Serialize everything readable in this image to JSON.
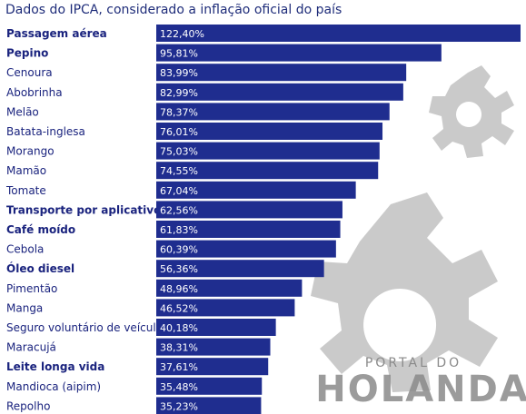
{
  "watermark": {
    "line1": "PORTAL DO",
    "line2": "HOLANDA",
    "color": "#9e9e9e"
  },
  "chart_data": {
    "type": "bar",
    "orientation": "horizontal",
    "title": "Dados do IPCA, considerado a inflação oficial do país",
    "xlabel": "",
    "ylabel": "",
    "xlim": [
      0,
      125
    ],
    "grid": false,
    "bar_color": "#1f2d8f",
    "label_color": "#1a237e",
    "categories": [
      "Passagem aérea",
      "Pepino",
      "Cenoura",
      "Abobrinha",
      "Melão",
      "Batata-inglesa",
      "Morango",
      "Mamão",
      "Tomate",
      "Transporte por aplicativo",
      "Café moído",
      "Cebola",
      "Óleo diesel",
      "Pimentão",
      "Manga",
      "Seguro voluntário de veículo",
      "Maracujá",
      "Leite longa vida",
      "Mandioca (aipim)",
      "Repolho"
    ],
    "values": [
      122.4,
      95.81,
      83.99,
      82.99,
      78.37,
      76.01,
      75.03,
      74.55,
      67.04,
      62.56,
      61.83,
      60.39,
      56.36,
      48.96,
      46.52,
      40.18,
      38.31,
      37.61,
      35.48,
      35.23
    ],
    "value_labels": [
      "122,40%",
      "95,81%",
      "83,99%",
      "82,99%",
      "78,37%",
      "76,01%",
      "75,03%",
      "74,55%",
      "67,04%",
      "62,56%",
      "61,83%",
      "60,39%",
      "56,36%",
      "48,96%",
      "46,52%",
      "40,18%",
      "38,31%",
      "37,61%",
      "35,48%",
      "35,23%"
    ],
    "bold_categories": [
      "Passagem aérea",
      "Pepino",
      "Transporte por aplicativo",
      "Café moído",
      "Óleo diesel",
      "Leite longa vida"
    ]
  }
}
